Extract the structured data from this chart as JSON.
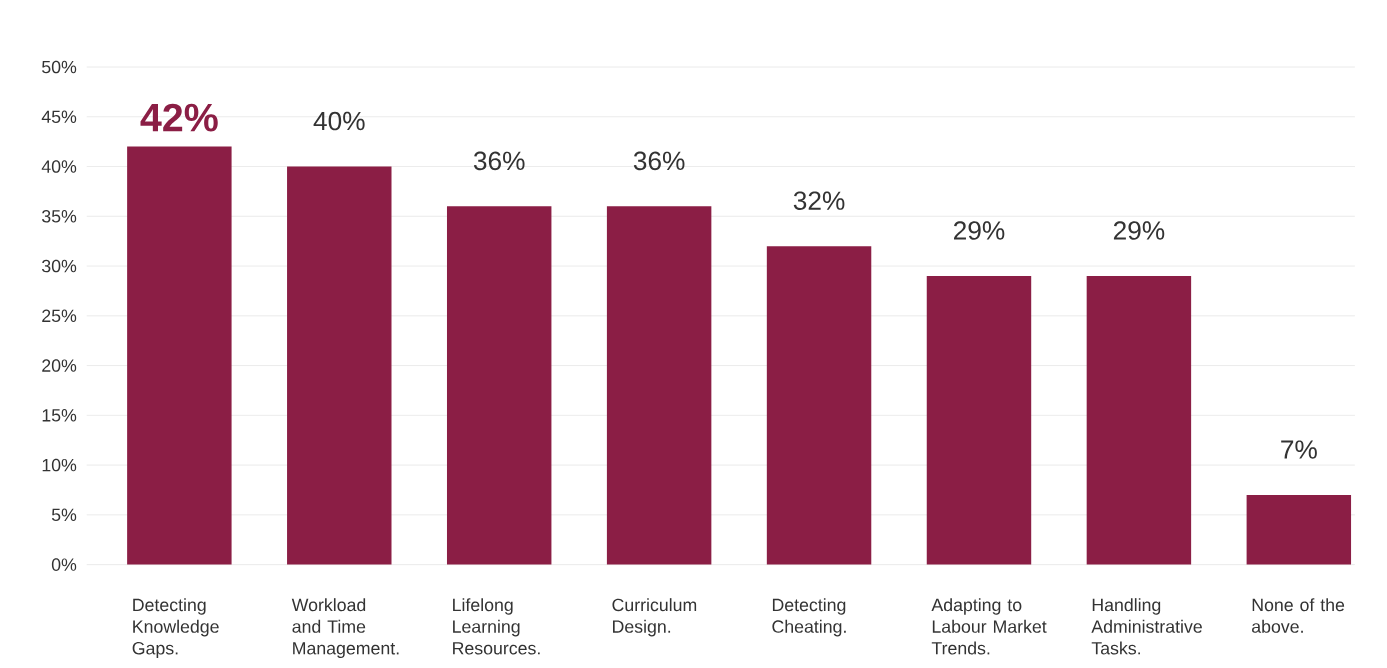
{
  "chart_data": {
    "type": "bar",
    "categories": [
      "Detecting Knowledge Gaps.",
      "Workload and Time Management.",
      "Lifelong Learning Resources.",
      "Curriculum Design.",
      "Detecting Cheating.",
      "Adapting to Labour Market Trends.",
      "Handling Administrative Tasks.",
      "None of the above."
    ],
    "values": [
      42,
      40,
      36,
      36,
      32,
      29,
      29,
      7
    ],
    "value_labels": [
      "42%",
      "40%",
      "36%",
      "36%",
      "32%",
      "29%",
      "29%",
      "7%"
    ],
    "color": "#8b1e45",
    "ylim": [
      0,
      50
    ],
    "yticks": [
      {
        "value": 0,
        "label": "0%"
      },
      {
        "value": 5,
        "label": "5%"
      },
      {
        "value": 10,
        "label": "10%"
      },
      {
        "value": 15,
        "label": "15%"
      },
      {
        "value": 20,
        "label": "20%"
      },
      {
        "value": 25,
        "label": "25%"
      },
      {
        "value": 30,
        "label": "30%"
      },
      {
        "value": 35,
        "label": "35%"
      },
      {
        "value": 40,
        "label": "40%"
      },
      {
        "value": 45,
        "label": "45%"
      },
      {
        "value": 50,
        "label": "50%"
      }
    ],
    "grid": "y"
  }
}
